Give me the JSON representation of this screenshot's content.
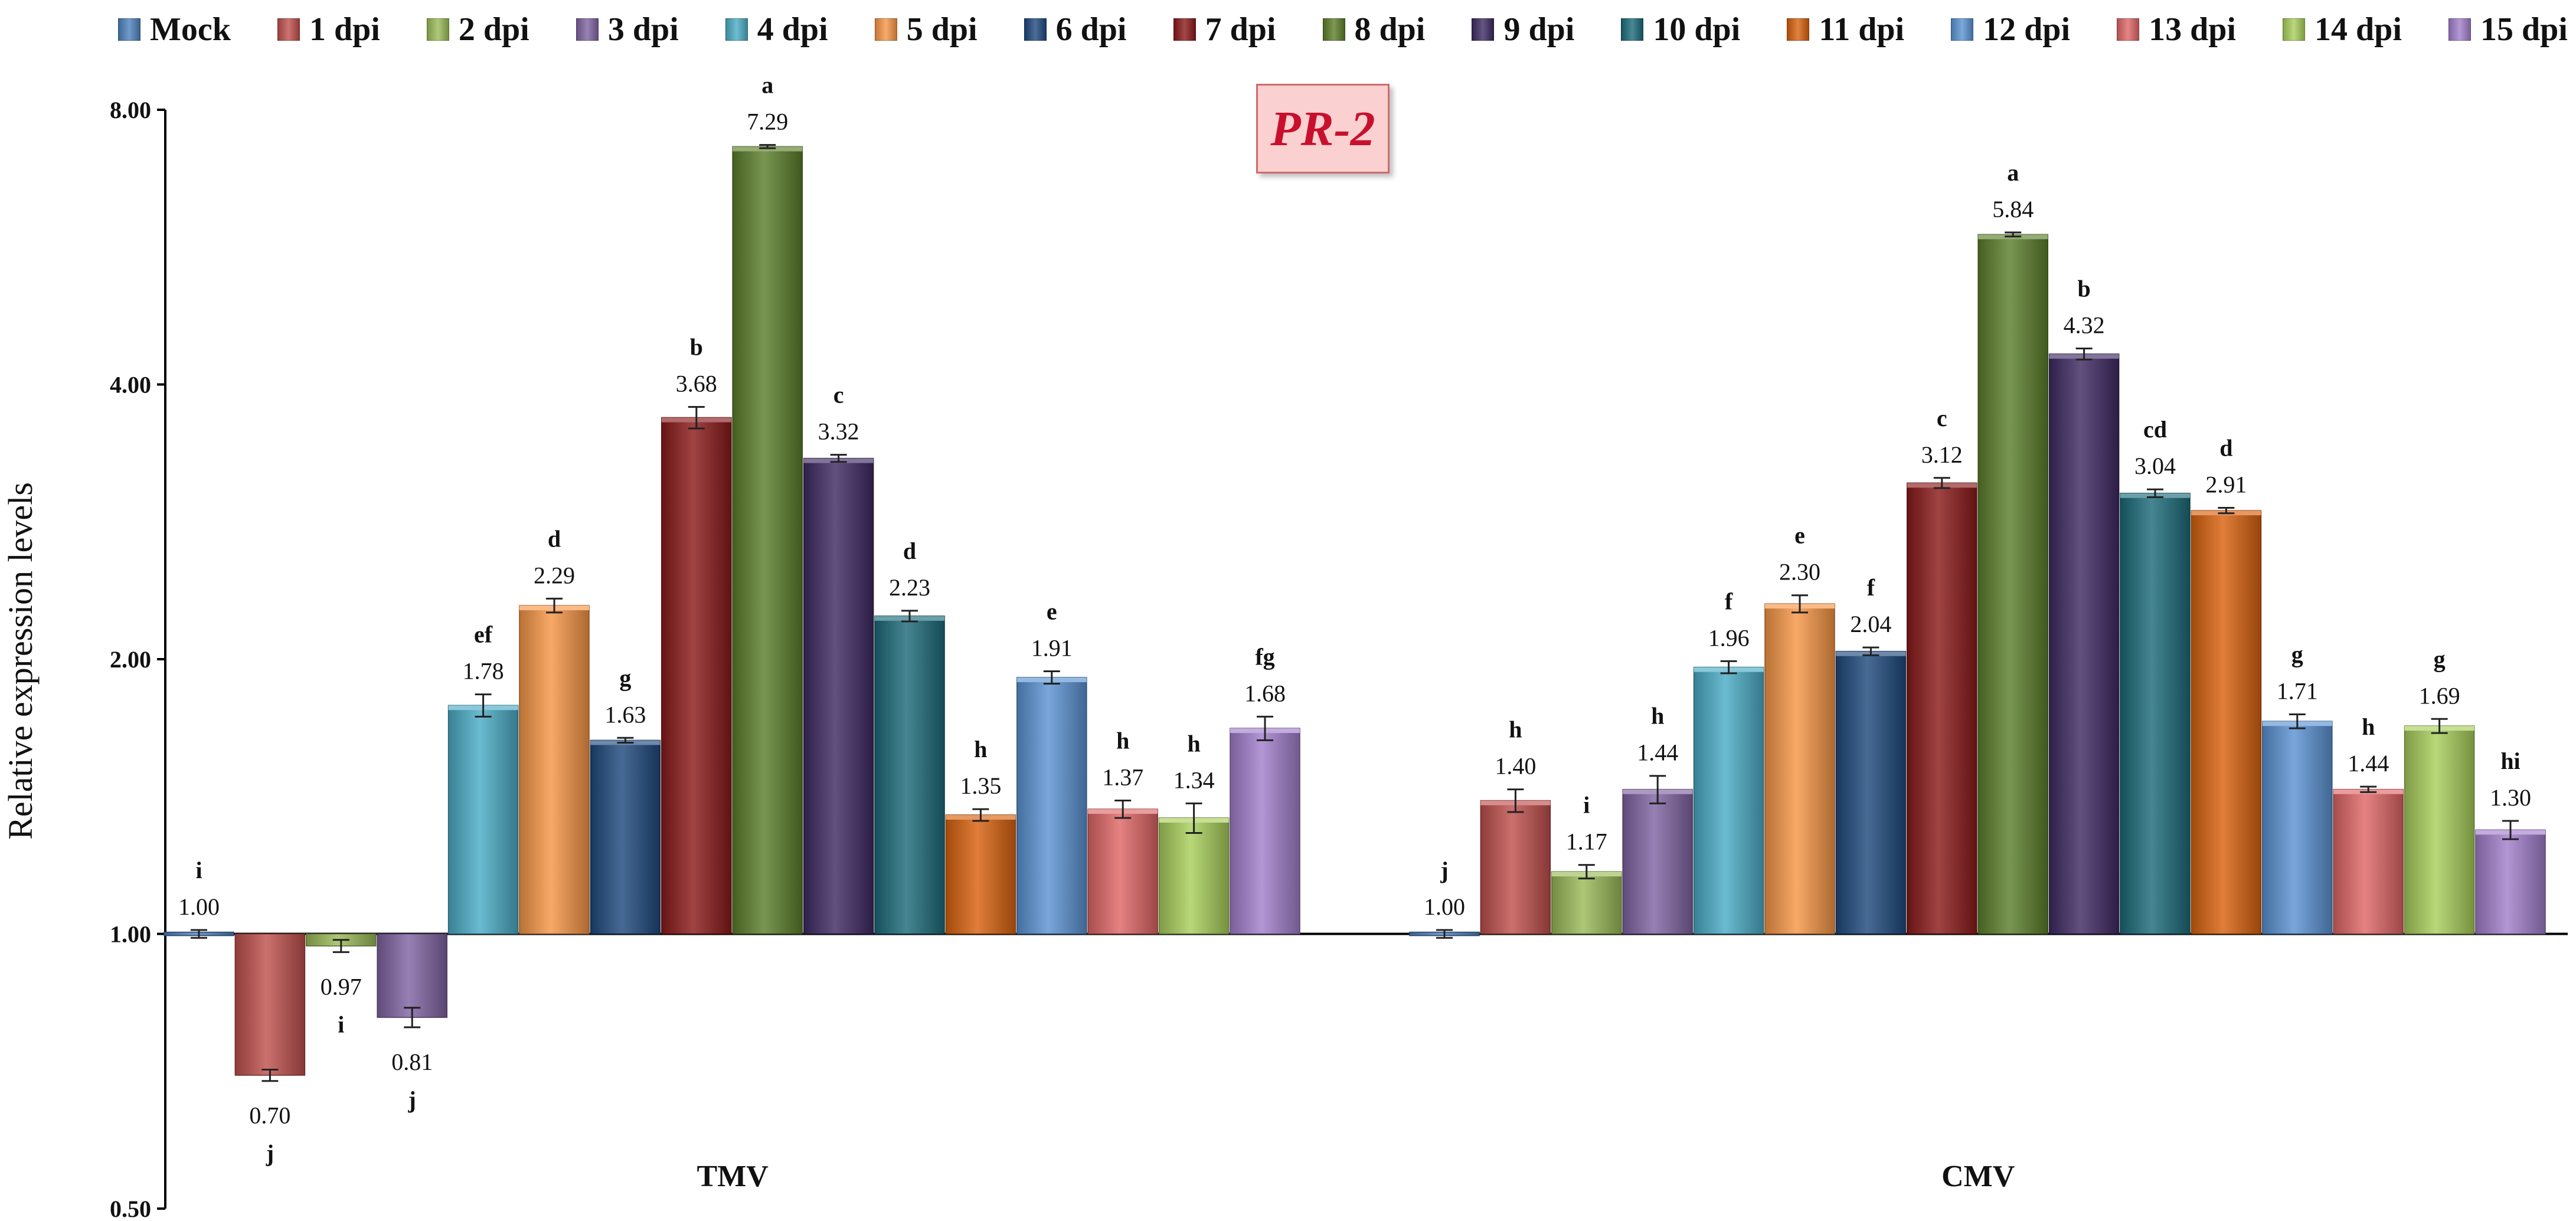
{
  "chart_data": {
    "type": "bar",
    "title": "PR-2",
    "ylabel": "Relative  expression levels",
    "yscale": "log2",
    "ylim": [
      0.5,
      8.0
    ],
    "yticks": [
      0.5,
      1.0,
      2.0,
      4.0,
      8.0
    ],
    "ytick_labels": [
      "0.50",
      "1.00",
      "2.00",
      "4.00",
      "8.00"
    ],
    "baseline": 1.0,
    "legend_position": "top",
    "series": [
      {
        "name": "Mock",
        "color": "#4f81bd"
      },
      {
        "name": "1 dpi",
        "color": "#c0504d"
      },
      {
        "name": "2 dpi",
        "color": "#9bbb59"
      },
      {
        "name": "3 dpi",
        "color": "#8064a2"
      },
      {
        "name": "4 dpi",
        "color": "#4bacc6"
      },
      {
        "name": "5 dpi",
        "color": "#f79646"
      },
      {
        "name": "6 dpi",
        "color": "#1f497d"
      },
      {
        "name": "7 dpi",
        "color": "#8b1a1a"
      },
      {
        "name": "8 dpi",
        "color": "#5c7f2b"
      },
      {
        "name": "9 dpi",
        "color": "#3f2a63"
      },
      {
        "name": "10 dpi",
        "color": "#1c6b7a"
      },
      {
        "name": "11 dpi",
        "color": "#d9620f"
      },
      {
        "name": "12 dpi",
        "color": "#5b93d3"
      },
      {
        "name": "13 dpi",
        "color": "#e06666"
      },
      {
        "name": "14 dpi",
        "color": "#a9cf5c"
      },
      {
        "name": "15 dpi",
        "color": "#a27fcc"
      }
    ],
    "groups": [
      {
        "name": "TMV",
        "values": [
          1.0,
          0.7,
          0.97,
          0.81,
          1.78,
          2.29,
          1.63,
          3.68,
          7.29,
          3.32,
          2.23,
          1.35,
          1.91,
          1.37,
          1.34,
          1.68
        ],
        "errors": [
          0.01,
          0.01,
          0.015,
          0.02,
          0.05,
          0.04,
          0.01,
          0.1,
          0.03,
          0.03,
          0.03,
          0.02,
          0.03,
          0.03,
          0.05,
          0.05
        ],
        "labels": [
          "1.00",
          "0.70",
          "0.97",
          "0.81",
          "1.78",
          "2.29",
          "1.63",
          "3.68",
          "7.29",
          "3.32",
          "2.23",
          "1.35",
          "1.91",
          "1.37",
          "1.34",
          "1.68"
        ],
        "letters": [
          "i",
          "j",
          "i",
          "j",
          "ef",
          "d",
          "g",
          "b",
          "a",
          "c",
          "d",
          "h",
          "e",
          "h",
          "h",
          "fg"
        ]
      },
      {
        "name": "CMV",
        "values": [
          1.0,
          1.4,
          1.17,
          1.44,
          1.96,
          2.3,
          2.04,
          3.12,
          5.84,
          4.32,
          3.04,
          2.91,
          1.71,
          1.44,
          1.69,
          1.3
        ],
        "errors": [
          0.01,
          0.04,
          0.02,
          0.05,
          0.03,
          0.05,
          0.02,
          0.04,
          0.03,
          0.06,
          0.03,
          0.02,
          0.03,
          0.01,
          0.03,
          0.03
        ],
        "labels": [
          "1.00",
          "1.40",
          "1.17",
          "1.44",
          "1.96",
          "2.30",
          "2.04",
          "3.12",
          "5.84",
          "4.32",
          "3.04",
          "2.91",
          "1.71",
          "1.44",
          "1.69",
          "1.30"
        ],
        "letters": [
          "j",
          "h",
          "i",
          "h",
          "f",
          "e",
          "f",
          "c",
          "a",
          "b",
          "cd",
          "d",
          "g",
          "h",
          "g",
          "hi"
        ]
      }
    ]
  }
}
